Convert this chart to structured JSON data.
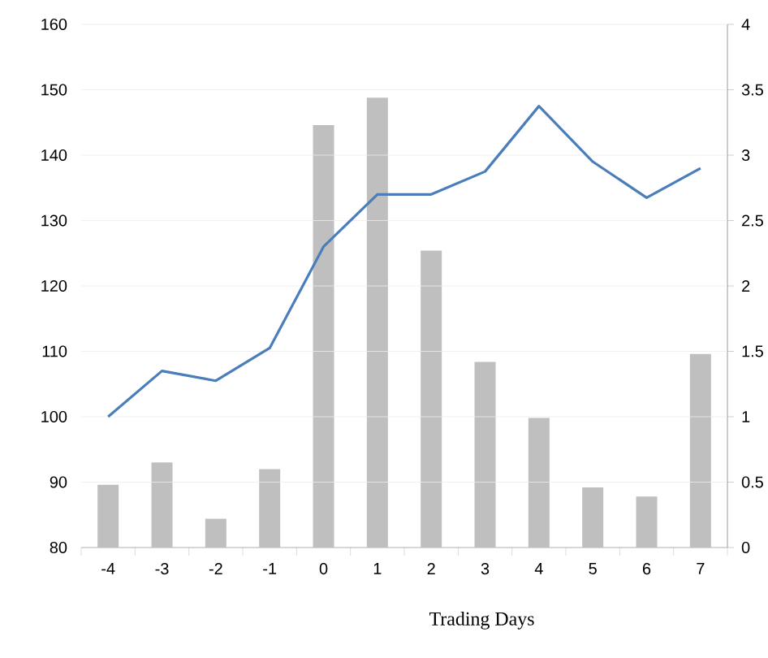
{
  "chart_data": {
    "type": "bar",
    "xlabel": "Trading Days",
    "categories": [
      "-4",
      "-3",
      "-2",
      "-1",
      "0",
      "1",
      "2",
      "3",
      "4",
      "5",
      "6",
      "7"
    ],
    "series": [
      {
        "axis": "y2",
        "color": "#bfbfbf",
        "values": [
          0.48,
          0.65,
          0.22,
          0.6,
          3.23,
          3.44,
          2.27,
          1.42,
          0.99,
          0.46,
          0.39,
          1.48
        ]
      },
      {
        "type": "line",
        "color": "#4a7ebb",
        "values": [
          100,
          107,
          105.5,
          110.5,
          126,
          134,
          134,
          137.5,
          147.5,
          139,
          133.5,
          138
        ]
      }
    ],
    "ylim": [
      80,
      160
    ],
    "yticks": [
      80,
      90,
      100,
      110,
      120,
      130,
      140,
      150,
      160
    ],
    "y2lim": [
      0,
      4
    ],
    "y2ticks": [
      0,
      0.5,
      1,
      1.5,
      2,
      2.5,
      3,
      3.5,
      4
    ],
    "grid": "y"
  }
}
